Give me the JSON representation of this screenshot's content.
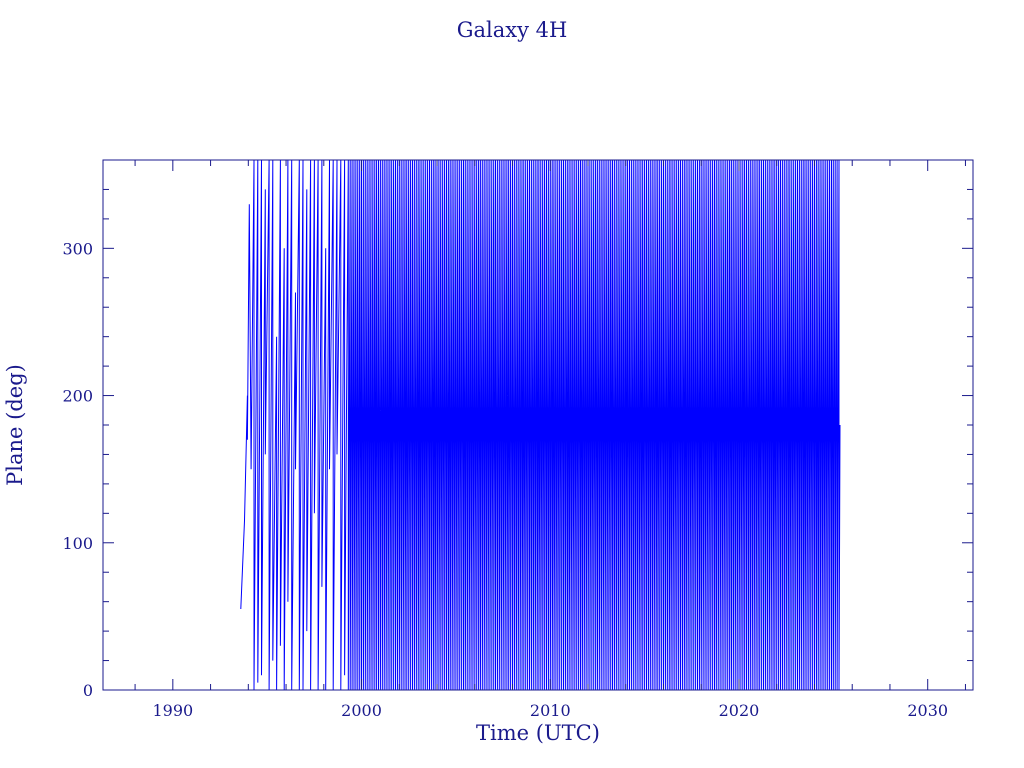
{
  "chart_data": {
    "type": "line",
    "title": "Galaxy 4H",
    "xlabel": "Time (UTC)",
    "ylabel": "Plane (deg)",
    "xlim": [
      1986.3,
      2032.4
    ],
    "ylim": [
      0,
      360
    ],
    "x_ticks": [
      1990,
      2000,
      2010,
      2020,
      2030
    ],
    "y_ticks": [
      0,
      100,
      200,
      300
    ],
    "grid": false,
    "colors": {
      "axes": "#1a1a8c",
      "series": "#0000ff"
    },
    "series": [
      {
        "note_style": "sawtooth",
        "x_start": 1993.6,
        "x_end": 2025.35,
        "segments_early": [
          [
            1993.6,
            55,
            115
          ],
          [
            1993.8,
            115,
            200
          ],
          [
            1993.95,
            170,
            330
          ],
          [
            1994.05,
            330,
            150
          ],
          [
            1994.15,
            150,
            360
          ],
          [
            1994.3,
            0,
            360
          ],
          [
            1994.5,
            5,
            360
          ],
          [
            1994.7,
            10,
            340
          ],
          [
            1994.9,
            160,
            360
          ],
          [
            1995.1,
            0,
            360
          ],
          [
            1995.3,
            20,
            240
          ],
          [
            1995.5,
            0,
            360
          ],
          [
            1995.7,
            30,
            300
          ],
          [
            1995.9,
            0,
            360
          ],
          [
            1996.1,
            60,
            360
          ],
          [
            1996.3,
            0,
            270
          ],
          [
            1996.5,
            150,
            360
          ],
          [
            1996.7,
            0,
            360
          ],
          [
            1996.9,
            0,
            340
          ],
          [
            1997.1,
            40,
            360
          ],
          [
            1997.3,
            0,
            360
          ],
          [
            1997.5,
            120,
            360
          ],
          [
            1997.7,
            0,
            360
          ],
          [
            1997.9,
            70,
            300
          ],
          [
            1998.1,
            0,
            360
          ],
          [
            1998.3,
            150,
            360
          ],
          [
            1998.5,
            0,
            360
          ],
          [
            1998.7,
            160,
            360
          ],
          [
            1998.9,
            0,
            360
          ],
          [
            1999.1,
            10,
            360
          ]
        ],
        "regular_period_years": 0.1,
        "regular_from": 1999.3
      }
    ]
  }
}
